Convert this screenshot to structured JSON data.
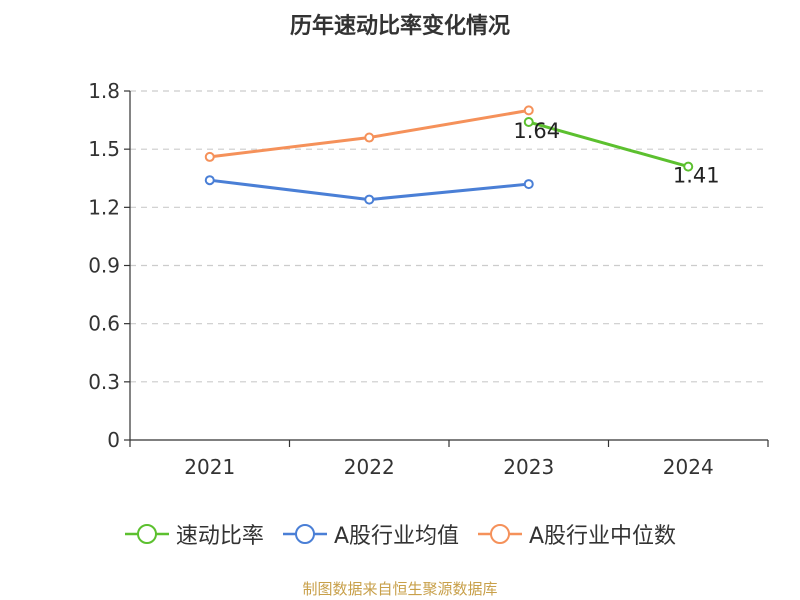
{
  "source_note": "制图数据来自恒生聚源数据库",
  "chart_data": {
    "type": "line",
    "title": "历年速动比率变化情况",
    "categories": [
      "2021",
      "2022",
      "2023",
      "2024"
    ],
    "ylim": [
      0,
      1.8
    ],
    "yticks": [
      "0",
      "0.3",
      "0.6",
      "0.9",
      "1.2",
      "1.5",
      "1.8"
    ],
    "grid": true,
    "legend_position": "bottom",
    "series": [
      {
        "name": "速动比率",
        "color": "#5cc02f",
        "values": [
          null,
          null,
          1.64,
          1.41
        ],
        "labels": [
          null,
          null,
          "1.64",
          "1.41"
        ]
      },
      {
        "name": "A股行业均值",
        "color": "#4a7fd6",
        "values": [
          1.34,
          1.24,
          1.32,
          null
        ],
        "labels": [
          null,
          null,
          null,
          null
        ]
      },
      {
        "name": "A股行业中位数",
        "color": "#f5915a",
        "values": [
          1.46,
          1.56,
          1.7,
          null
        ],
        "labels": [
          null,
          null,
          null,
          null
        ]
      }
    ]
  }
}
